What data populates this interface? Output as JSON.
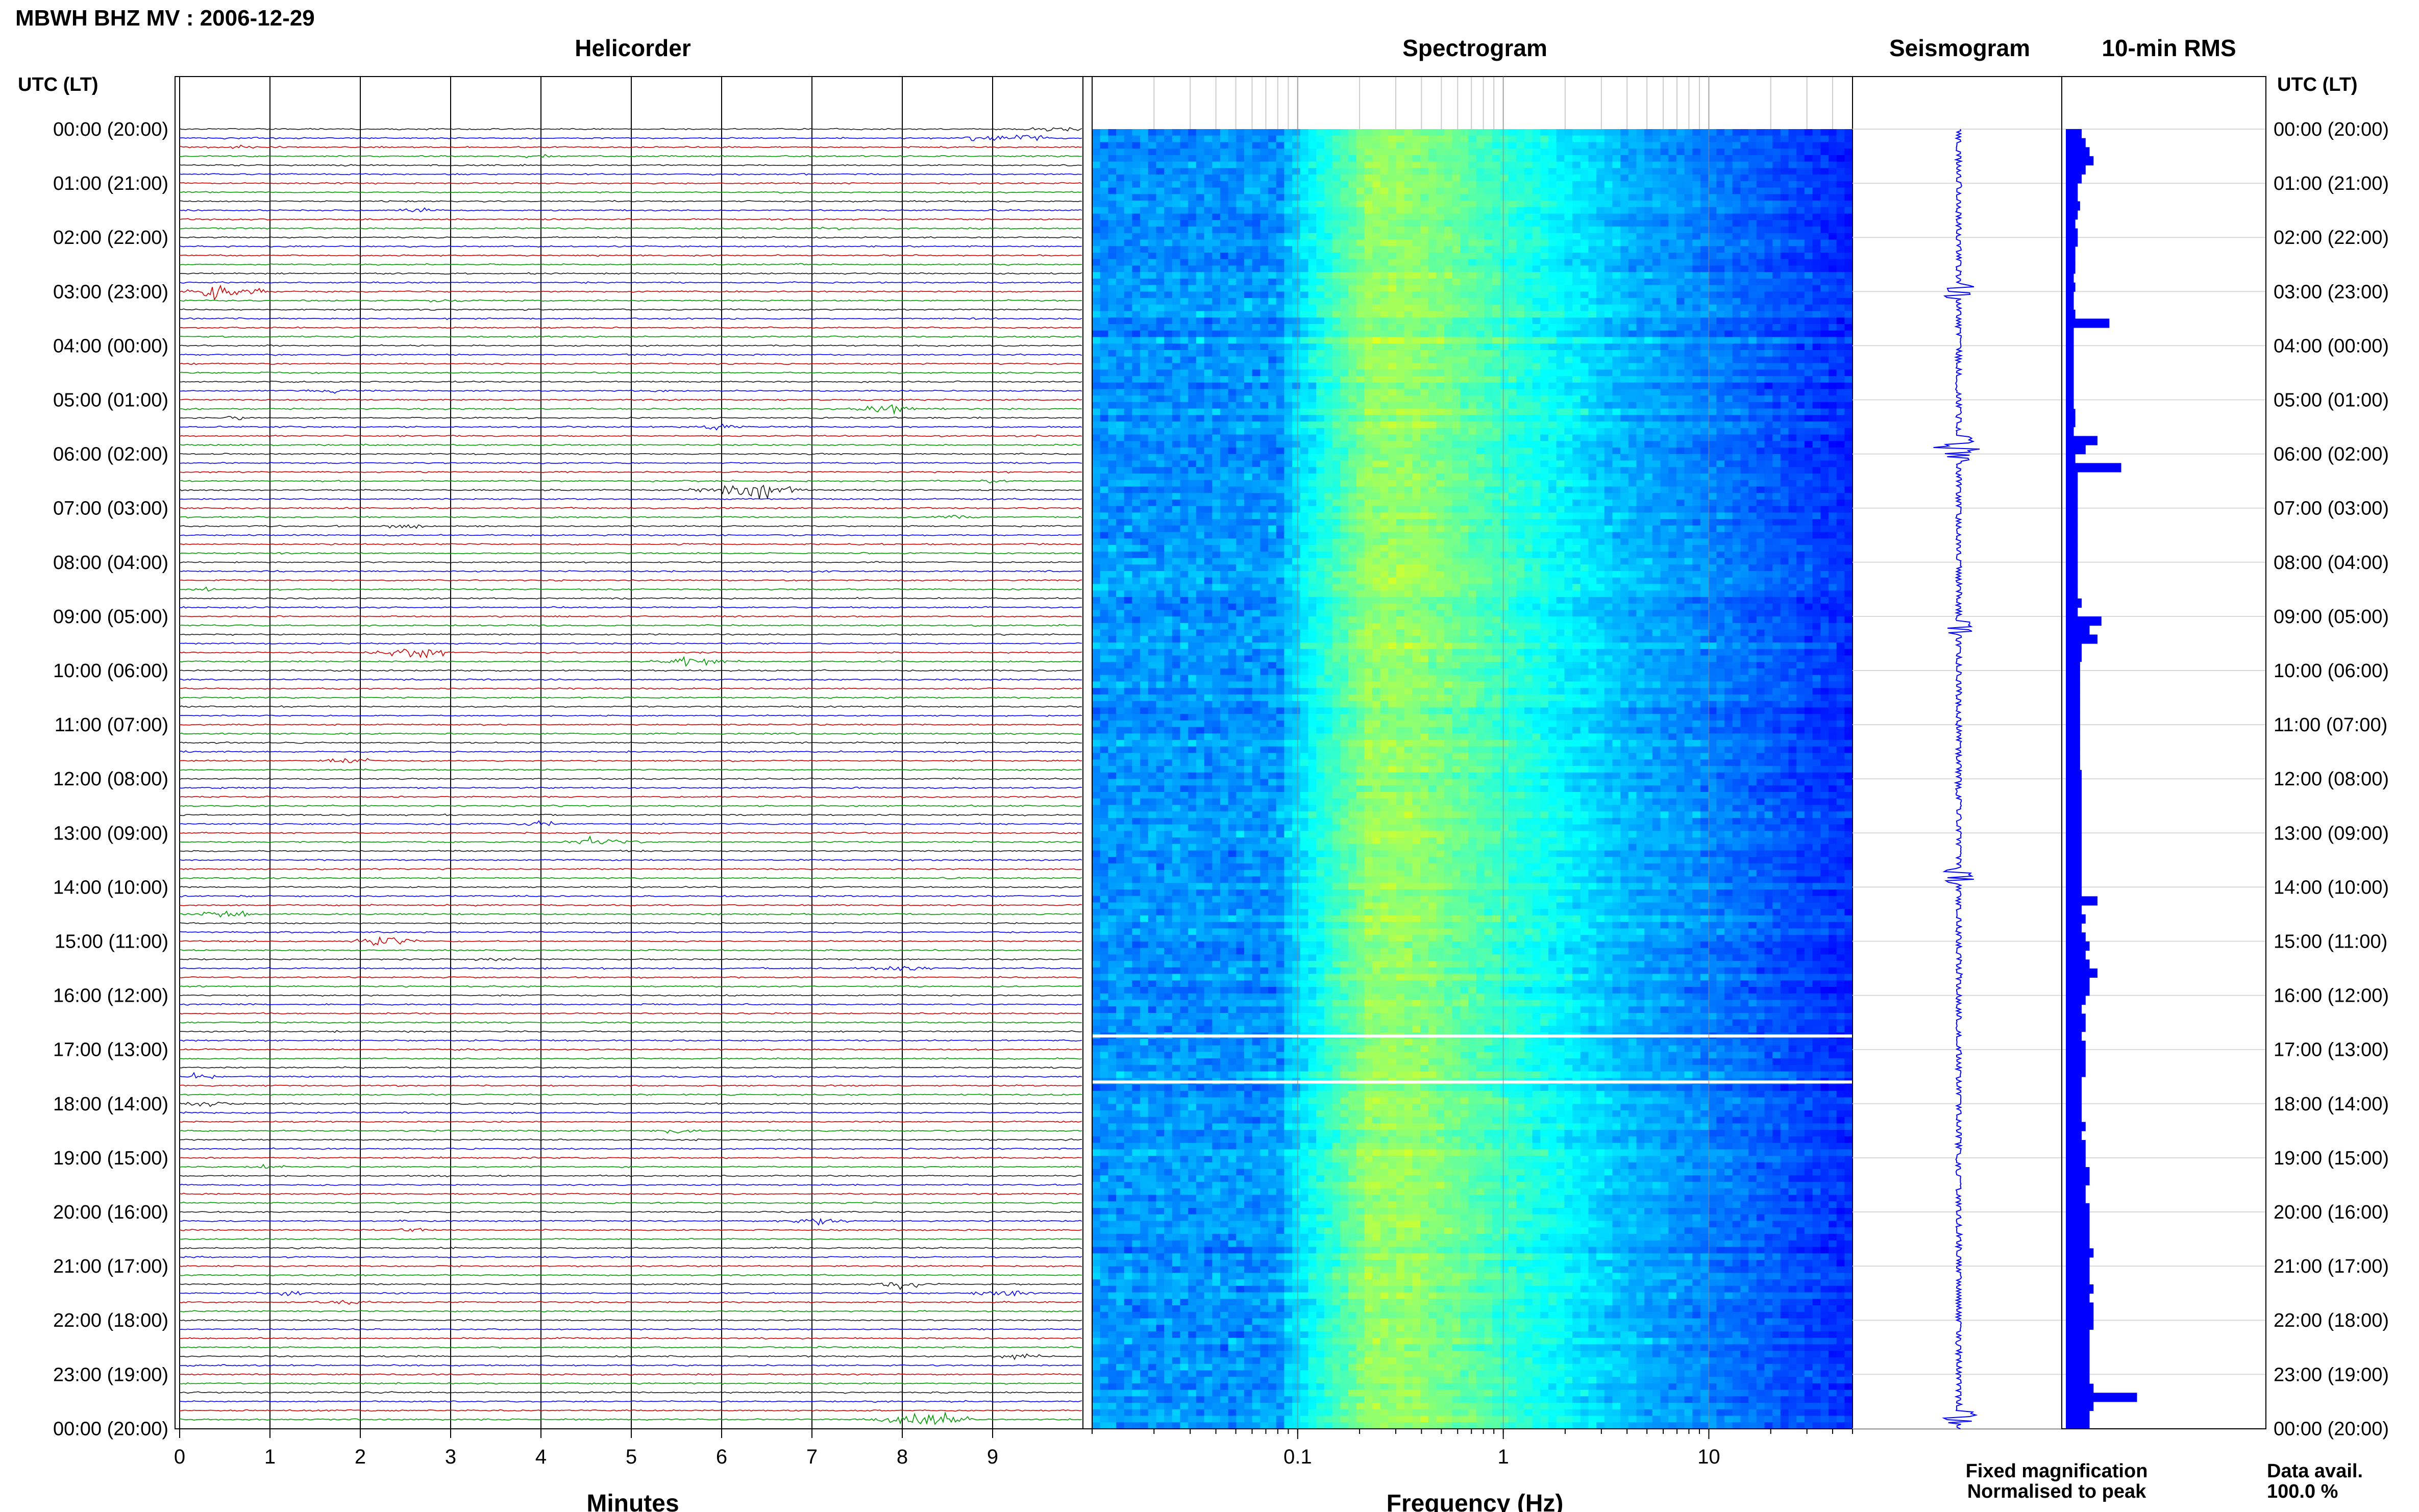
{
  "chart_data": {
    "type": "heatmap",
    "title": "MBWH BHZ MV : 2006-12-29",
    "panels": {
      "helicorder": "Helicorder",
      "spectrogram": "Spectrogram",
      "seismogram": "Seismogram",
      "rms": "10-min RMS"
    },
    "time_axis_label": "UTC (LT)",
    "hour_labels": [
      "00:00 (20:00)",
      "01:00 (21:00)",
      "02:00 (22:00)",
      "03:00 (23:00)",
      "04:00 (00:00)",
      "05:00 (01:00)",
      "06:00 (02:00)",
      "07:00 (03:00)",
      "08:00 (04:00)",
      "09:00 (05:00)",
      "10:00 (06:00)",
      "11:00 (07:00)",
      "12:00 (08:00)",
      "13:00 (09:00)",
      "14:00 (10:00)",
      "15:00 (11:00)",
      "16:00 (12:00)",
      "17:00 (13:00)",
      "18:00 (14:00)",
      "19:00 (15:00)",
      "20:00 (16:00)",
      "21:00 (17:00)",
      "22:00 (18:00)",
      "23:00 (19:00)",
      "00:00 (20:00)"
    ],
    "helicorder_xlabel": "Minutes",
    "helicorder_xticks": [
      "0",
      "1",
      "2",
      "3",
      "4",
      "5",
      "6",
      "7",
      "8",
      "9"
    ],
    "helicorder_xlim": [
      0,
      10
    ],
    "helicorder_trace_colors": [
      "#1a1a1a",
      "#0000ff",
      "#cc0000",
      "#009900"
    ],
    "helicorder_events": [
      {
        "hour": 0,
        "minute": 9.7,
        "amp": 0.5
      },
      {
        "hour": 0,
        "minute": 9.3,
        "amp": 0.7
      },
      {
        "hour": 0,
        "minute": 8.8,
        "amp": 0.4
      },
      {
        "hour": 0,
        "minute": 0.6,
        "amp": 0.3
      },
      {
        "hour": 0,
        "minute": 4.0,
        "amp": 0.3
      },
      {
        "hour": 1,
        "minute": 2.7,
        "amp": 0.3
      },
      {
        "hour": 1,
        "minute": 7.2,
        "amp": 0.3
      },
      {
        "hour": 3,
        "minute": 0.5,
        "amp": 1.0
      },
      {
        "hour": 3,
        "minute": 2.9,
        "amp": 0.3
      },
      {
        "hour": 4,
        "minute": 1.7,
        "amp": 0.4
      },
      {
        "hour": 4,
        "minute": 5.2,
        "amp": 0.3
      },
      {
        "hour": 5,
        "minute": 0.7,
        "amp": 0.3
      },
      {
        "hour": 5,
        "minute": 6.0,
        "amp": 0.5
      },
      {
        "hour": 5,
        "minute": 7.8,
        "amp": 0.7
      },
      {
        "hour": 6,
        "minute": 6.3,
        "amp": 1.3
      },
      {
        "hour": 6,
        "minute": 9.0,
        "amp": 0.3
      },
      {
        "hour": 7,
        "minute": 2.5,
        "amp": 0.4
      },
      {
        "hour": 7,
        "minute": 8.5,
        "amp": 0.4
      },
      {
        "hour": 8,
        "minute": 0.4,
        "amp": 0.3
      },
      {
        "hour": 9,
        "minute": 5.7,
        "amp": 0.8
      },
      {
        "hour": 9,
        "minute": 2.6,
        "amp": 0.9
      },
      {
        "hour": 11,
        "minute": 1.9,
        "amp": 0.5
      },
      {
        "hour": 12,
        "minute": 4.0,
        "amp": 0.4
      },
      {
        "hour": 13,
        "minute": 4.7,
        "amp": 0.8
      },
      {
        "hour": 14,
        "minute": 0.5,
        "amp": 0.6
      },
      {
        "hour": 15,
        "minute": 8.0,
        "amp": 0.5
      },
      {
        "hour": 15,
        "minute": 2.3,
        "amp": 0.7
      },
      {
        "hour": 15,
        "minute": 3.5,
        "amp": 0.3
      },
      {
        "hour": 17,
        "minute": 0.2,
        "amp": 0.4
      },
      {
        "hour": 18,
        "minute": 5.5,
        "amp": 0.3
      },
      {
        "hour": 18,
        "minute": 0.3,
        "amp": 0.4
      },
      {
        "hour": 19,
        "minute": 1.0,
        "amp": 0.3
      },
      {
        "hour": 20,
        "minute": 2.6,
        "amp": 0.3
      },
      {
        "hour": 20,
        "minute": 7.0,
        "amp": 0.6
      },
      {
        "hour": 21,
        "minute": 8.0,
        "amp": 0.6
      },
      {
        "hour": 21,
        "minute": 9.1,
        "amp": 0.6
      },
      {
        "hour": 21,
        "minute": 1.2,
        "amp": 0.4
      },
      {
        "hour": 21,
        "minute": 1.8,
        "amp": 0.4
      },
      {
        "hour": 22,
        "minute": 9.3,
        "amp": 0.4
      },
      {
        "hour": 23,
        "minute": 8.2,
        "amp": 1.2
      }
    ],
    "spectrogram_xlabel": "Frequency (Hz)",
    "spectrogram_xticks": [
      {
        "value": 0.1,
        "label": "0.1"
      },
      {
        "value": 1,
        "label": "1"
      },
      {
        "value": 10,
        "label": "10"
      }
    ],
    "spectrogram_xlim": [
      0.01,
      50
    ],
    "spectrogram_scale": "log",
    "spectrogram_peak_hz": [
      0.2,
      0.35
    ],
    "spectrogram_gaps_hour": [
      16.75,
      17.6
    ],
    "rms_10min": [
      0.2,
      0.25,
      0.3,
      0.35,
      0.25,
      0.2,
      0.15,
      0.15,
      0.18,
      0.15,
      0.12,
      0.15,
      0.15,
      0.12,
      0.12,
      0.12,
      0.1,
      0.12,
      0.1,
      0.1,
      0.12,
      0.55,
      0.1,
      0.1,
      0.1,
      0.1,
      0.1,
      0.1,
      0.1,
      0.1,
      0.1,
      0.12,
      0.12,
      0.1,
      0.4,
      0.25,
      0.12,
      0.7,
      0.15,
      0.15,
      0.15,
      0.15,
      0.15,
      0.15,
      0.15,
      0.15,
      0.15,
      0.15,
      0.15,
      0.15,
      0.15,
      0.15,
      0.2,
      0.15,
      0.45,
      0.3,
      0.4,
      0.2,
      0.2,
      0.18,
      0.18,
      0.18,
      0.18,
      0.18,
      0.18,
      0.18,
      0.18,
      0.18,
      0.18,
      0.18,
      0.18,
      0.2,
      0.2,
      0.2,
      0.2,
      0.2,
      0.2,
      0.2,
      0.2,
      0.2,
      0.2,
      0.2,
      0.2,
      0.2,
      0.2,
      0.4,
      0.2,
      0.25,
      0.2,
      0.25,
      0.3,
      0.25,
      0.3,
      0.4,
      0.3,
      0.3,
      0.25,
      0.2,
      0.25,
      0.25,
      0.2,
      0.25,
      0.25,
      0.25,
      0.25,
      0.2,
      0.2,
      0.2,
      0.2,
      0.2,
      0.25,
      0.2,
      0.25,
      0.25,
      0.25,
      0.3,
      0.3,
      0.25,
      0.25,
      0.3,
      0.3,
      0.3,
      0.3,
      0.3,
      0.35,
      0.3,
      0.3,
      0.3,
      0.35,
      0.3,
      0.35,
      0.35,
      0.35,
      0.3,
      0.3,
      0.3,
      0.3,
      0.3,
      0.3,
      0.35,
      0.9,
      0.35,
      0.3,
      0.3
    ],
    "legend": {
      "fixed": {
        "text": "Fixed magnification",
        "color": "#0000ff"
      },
      "normalised": {
        "text": "Normalised to peak",
        "color": "#ff0000"
      }
    },
    "data_avail_label": "Data avail.",
    "data_avail_value": "100.0 %"
  }
}
